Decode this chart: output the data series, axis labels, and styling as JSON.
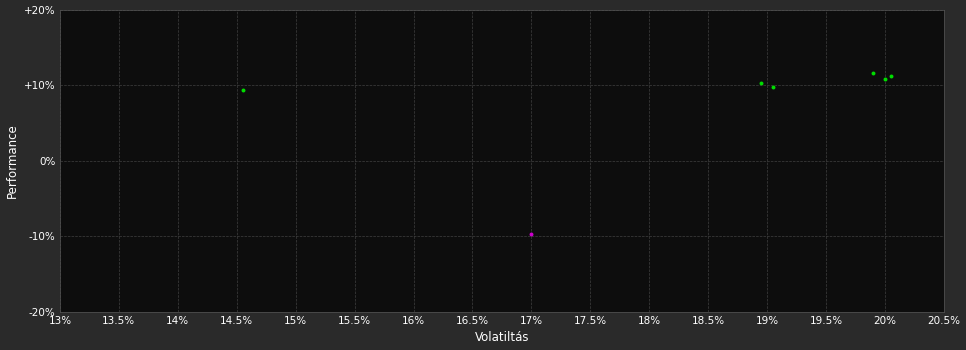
{
  "background_color": "#2a2a2a",
  "plot_bg_color": "#0d0d0d",
  "grid_color": "#404040",
  "text_color": "#ffffff",
  "xlabel": "Volatiltás",
  "ylabel": "Performance",
  "xlim": [
    0.13,
    0.205
  ],
  "ylim": [
    -0.2,
    0.2
  ],
  "xticks": [
    0.13,
    0.135,
    0.14,
    0.145,
    0.15,
    0.155,
    0.16,
    0.165,
    0.17,
    0.175,
    0.18,
    0.185,
    0.19,
    0.195,
    0.2,
    0.205
  ],
  "yticks": [
    -0.2,
    -0.1,
    0.0,
    0.1,
    0.2
  ],
  "green_points": [
    [
      0.1455,
      0.093
    ],
    [
      0.1895,
      0.103
    ],
    [
      0.1905,
      0.097
    ],
    [
      0.199,
      0.116
    ],
    [
      0.2,
      0.108
    ],
    [
      0.2005,
      0.112
    ]
  ],
  "magenta_points": [
    [
      0.17,
      -0.097
    ]
  ],
  "green_color": "#00dd00",
  "magenta_color": "#cc00cc",
  "point_size": 8
}
